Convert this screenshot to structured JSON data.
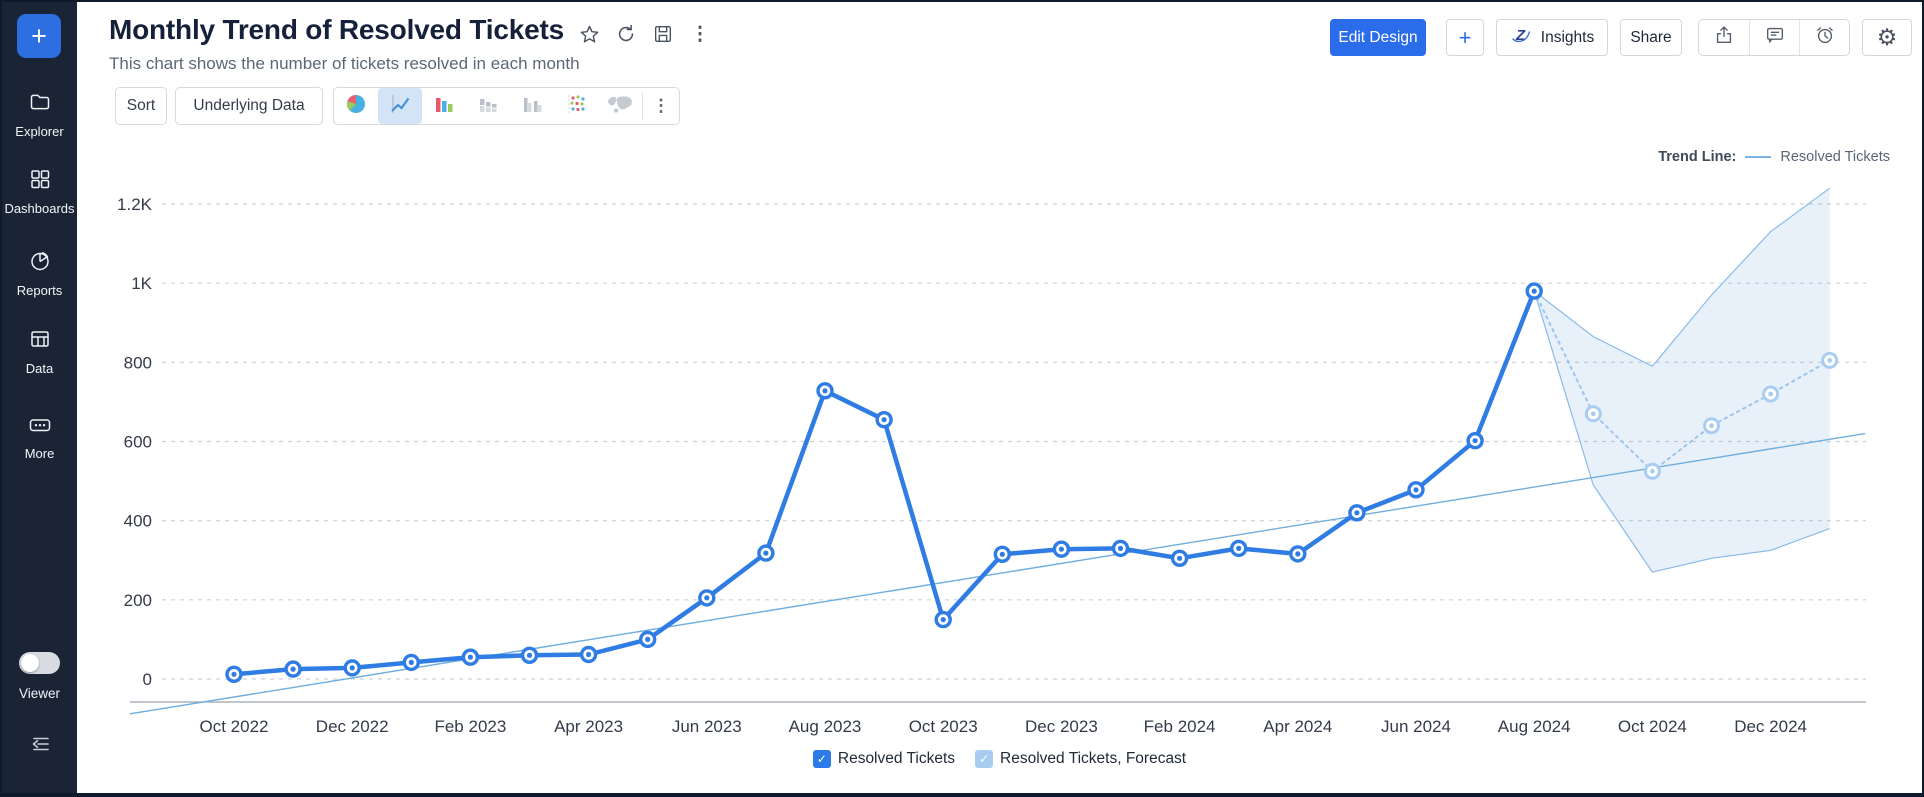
{
  "sidebar": {
    "plus_label": "+",
    "items": [
      {
        "id": "explorer",
        "label": "Explorer"
      },
      {
        "id": "dashboards",
        "label": "Dashboards"
      },
      {
        "id": "reports",
        "label": "Reports"
      },
      {
        "id": "data",
        "label": "Data"
      },
      {
        "id": "more",
        "label": "More"
      }
    ],
    "viewer_label": "Viewer",
    "viewer_toggle_state": "off"
  },
  "header": {
    "title": "Monthly Trend of Resolved Tickets",
    "subtitle": "This chart shows the number of tickets resolved in each month",
    "buttons": {
      "edit_design": "Edit Design",
      "add": "+",
      "insights": "Insights",
      "share": "Share"
    }
  },
  "toolbar": {
    "sort_label": "Sort",
    "underlying_data_label": "Underlying Data",
    "chart_types": [
      "pie",
      "line",
      "bar",
      "stacked-bar",
      "grouped-bar",
      "scatter",
      "map"
    ],
    "selected_chart_type": "line"
  },
  "chart_data": {
    "type": "line",
    "title": "Monthly Trend of Resolved Tickets",
    "months": [
      "Oct 2022",
      "Nov 2022",
      "Dec 2022",
      "Jan 2023",
      "Feb 2023",
      "Mar 2023",
      "Apr 2023",
      "May 2023",
      "Jun 2023",
      "Jul 2023",
      "Aug 2023",
      "Sep 2023",
      "Oct 2023",
      "Nov 2023",
      "Dec 2023",
      "Jan 2024",
      "Feb 2024",
      "Mar 2024",
      "Apr 2024",
      "May 2024",
      "Jun 2024",
      "Jul 2024",
      "Aug 2024",
      "Sep 2024",
      "Oct 2024",
      "Nov 2024",
      "Dec 2024",
      "Jan 2025"
    ],
    "x_tick_indices": [
      0,
      2,
      4,
      6,
      8,
      10,
      12,
      14,
      16,
      18,
      20,
      22,
      24,
      26
    ],
    "ylim": [
      0,
      1200
    ],
    "y_ticks": {
      "values": [
        0,
        200,
        400,
        600,
        800,
        1000,
        1200
      ],
      "labels": [
        "0",
        "200",
        "400",
        "600",
        "800",
        "1K",
        "1.2K"
      ]
    },
    "grid": true,
    "grid_color": "#cdd0d5",
    "axis_color": "#9ea5ae",
    "tick_label_color": "#333b49",
    "series": [
      {
        "name": "Resolved Tickets",
        "kind": "actual",
        "color": "#2e7ce4",
        "start_index": 0,
        "values": [
          12,
          25,
          28,
          42,
          55,
          60,
          62,
          100,
          205,
          318,
          728,
          655,
          150,
          315,
          328,
          330,
          305,
          330,
          316,
          420,
          478,
          602,
          980
        ]
      },
      {
        "name": "Resolved Tickets, Forecast",
        "kind": "forecast",
        "color": "#a9cdf1",
        "line_color": "#9cc4ee",
        "start_index": 23,
        "values": [
          670,
          525,
          640,
          720,
          805
        ]
      }
    ],
    "forecast_band": {
      "start_index": 22,
      "upper": [
        980,
        865,
        790,
        970,
        1130,
        1240
      ],
      "lower": [
        980,
        490,
        270,
        305,
        325,
        380
      ],
      "fill": "#4a90d9",
      "fill_opacity": 0.13,
      "edge": "#8abae9"
    },
    "trend_line": {
      "legend_label": "Trend Line:",
      "series_label": "Resolved Tickets",
      "color": "#6faede",
      "start": {
        "index": -1.76,
        "value": -88
      },
      "end": {
        "index": 27.6,
        "value": 620
      }
    },
    "legend_position": "bottom"
  },
  "legend": {
    "items": [
      {
        "label": "Resolved Tickets",
        "color": "#2d7be8",
        "checked": true,
        "check": "✓"
      },
      {
        "label": "Resolved Tickets, Forecast",
        "color": "#a9cdf1",
        "checked": true,
        "check": "✓"
      }
    ]
  }
}
